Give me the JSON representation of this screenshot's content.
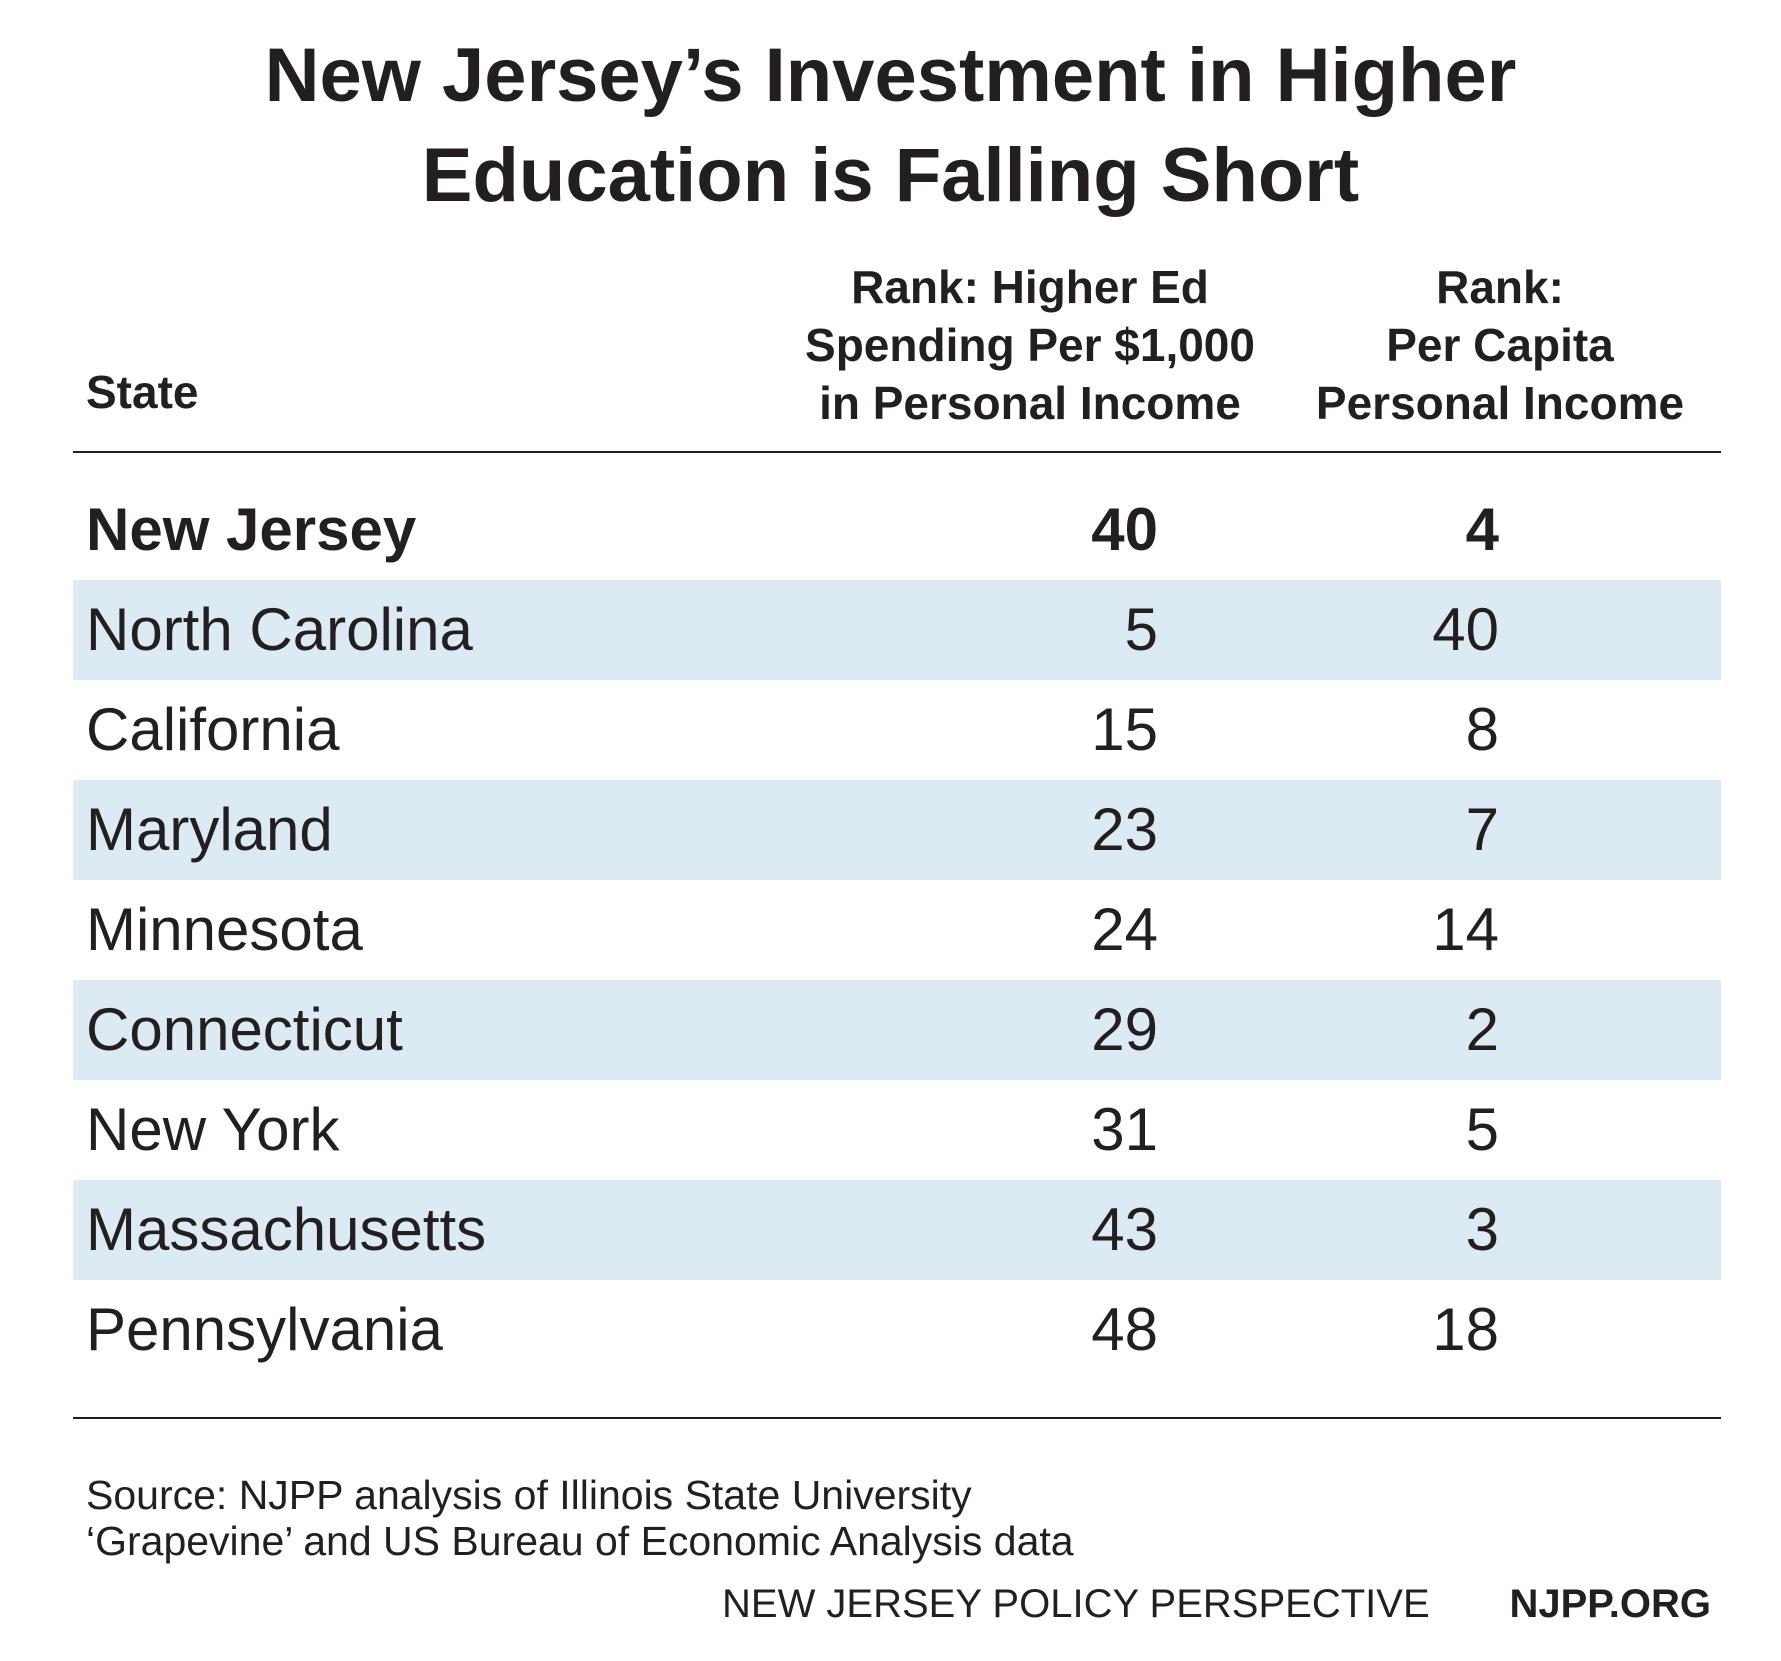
{
  "chart_data": {
    "type": "table",
    "title_lines": [
      "New Jersey’s Investment in Higher",
      "Education is Falling Short"
    ],
    "columns": [
      {
        "key": "state",
        "label_lines": [
          "State"
        ]
      },
      {
        "key": "higher_ed_rank",
        "label_lines": [
          "Rank: Higher Ed",
          "Spending Per $1,000",
          "in Personal Income"
        ]
      },
      {
        "key": "income_rank",
        "label_lines": [
          "Rank:",
          "Per Capita",
          "Personal Income"
        ]
      }
    ],
    "rows": [
      {
        "state": "New Jersey",
        "higher_ed_rank": "40",
        "income_rank": "4"
      },
      {
        "state": "North Carolina",
        "higher_ed_rank": "5",
        "income_rank": "40"
      },
      {
        "state": "California",
        "higher_ed_rank": "15",
        "income_rank": "8"
      },
      {
        "state": "Maryland",
        "higher_ed_rank": "23",
        "income_rank": "7"
      },
      {
        "state": "Minnesota",
        "higher_ed_rank": "24",
        "income_rank": "14"
      },
      {
        "state": "Connecticut",
        "higher_ed_rank": "29",
        "income_rank": "2"
      },
      {
        "state": "New York",
        "higher_ed_rank": "31",
        "income_rank": "5"
      },
      {
        "state": "Massachusetts",
        "higher_ed_rank": "43",
        "income_rank": "3"
      },
      {
        "state": "Pennsylvania",
        "higher_ed_rank": "48",
        "income_rank": "18"
      }
    ],
    "highlighted_row": "New Jersey",
    "row_shading_color": "#dbeaf3",
    "source_lines": [
      "Source: NJPP analysis of Illinois State University",
      "‘Grapevine’ and US Bureau of Economic Analysis data"
    ]
  },
  "footer": {
    "organization": "NEW JERSEY POLICY PERSPECTIVE",
    "website": "NJPP.ORG"
  }
}
